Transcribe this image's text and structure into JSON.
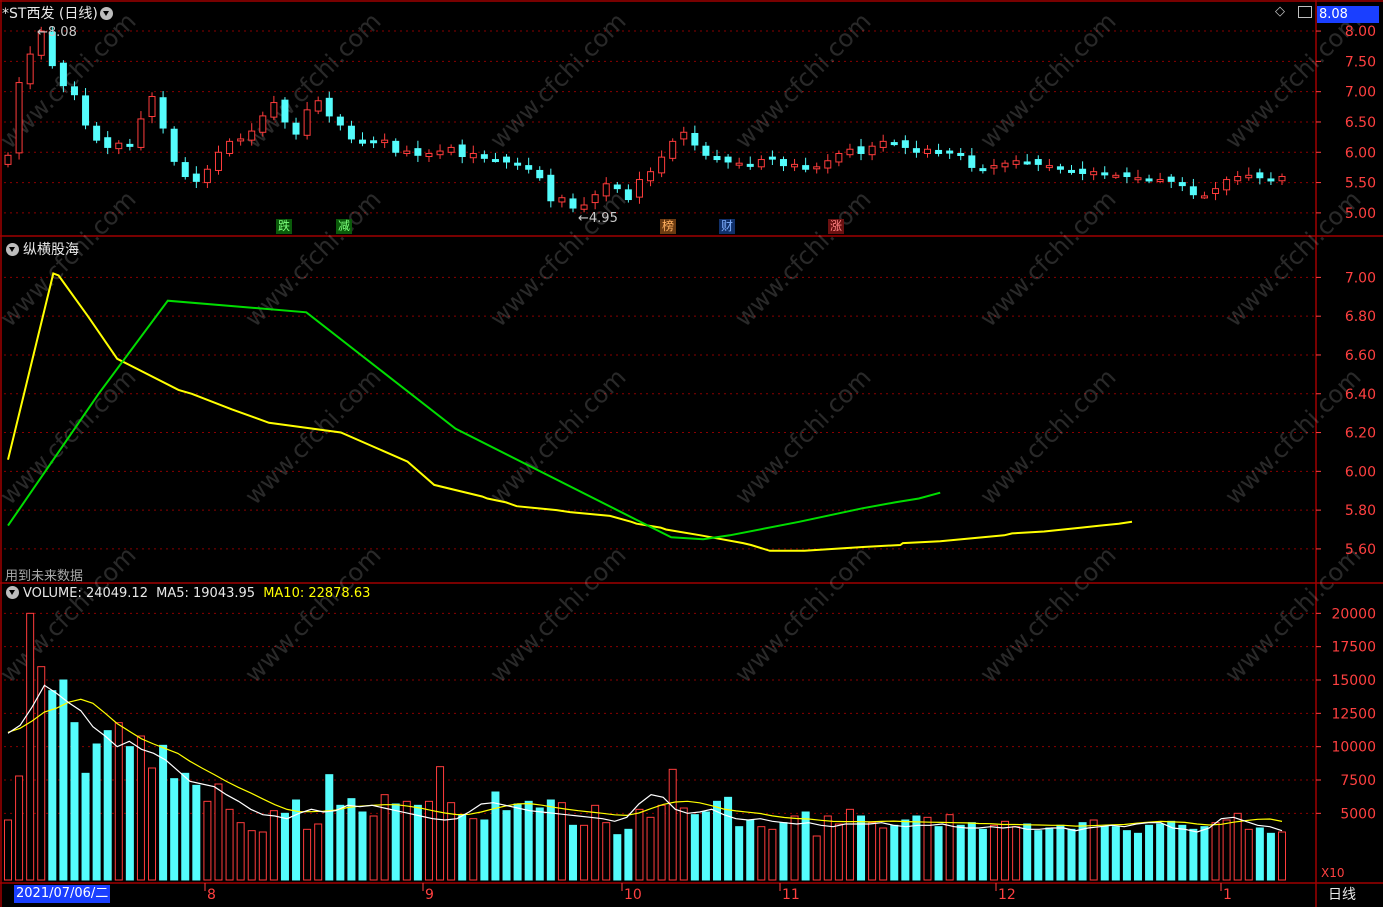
{
  "colors": {
    "up": "#ff3c3c",
    "down": "#54fcfc",
    "frame": "#a00000",
    "yellow": "#ffff00",
    "green": "#00dd00",
    "white": "#ffffff",
    "axis_text": "#ff4040"
  },
  "price_panel": {
    "title": "*ST西发 (日线)",
    "price_badge": "8.08",
    "high_label": "8.08",
    "low_label": "4.95",
    "y_ticks": [
      "8.00",
      "7.50",
      "7.00",
      "6.50",
      "6.00",
      "5.50",
      "5.00"
    ],
    "event_tags": [
      {
        "text": "跌",
        "color": "#00c000"
      },
      {
        "text": "减",
        "color": "#00c000"
      },
      {
        "text": "榜",
        "color": "#e08030"
      },
      {
        "text": "财",
        "color": "#3070ff"
      },
      {
        "text": "涨",
        "color": "#ff3030"
      }
    ]
  },
  "indicator_panel": {
    "title": "纵横股海",
    "note": "用到未来数据",
    "y_ticks": [
      "7.00",
      "6.80",
      "6.60",
      "6.40",
      "6.20",
      "6.00",
      "5.80",
      "5.60"
    ]
  },
  "volume_panel": {
    "title_volume": "VOLUME: 24049.12",
    "title_ma5": "MA5: 19043.95",
    "title_ma10": "MA10: 22878.63",
    "y_ticks": [
      "20000",
      "17500",
      "15000",
      "12500",
      "10000",
      "7500",
      "5000"
    ],
    "unit": "X10"
  },
  "x_axis": {
    "start_label": "2021/07/06/二",
    "month_labels": [
      "8",
      "9",
      "10",
      "11",
      "12",
      "1"
    ],
    "period_button": "日线"
  },
  "watermark": "www.cfchi.com",
  "chart_data": [
    {
      "type": "candlestick",
      "title": "*ST西发 (日线)",
      "ylim": [
        4.8,
        8.1
      ],
      "high": 8.08,
      "low": 4.95,
      "close_series": [
        5.95,
        7.15,
        7.62,
        8.0,
        7.43,
        7.1,
        6.95,
        6.45,
        6.2,
        6.08,
        6.15,
        6.1,
        6.55,
        6.92,
        6.4,
        5.85,
        5.6,
        5.52,
        5.72,
        6.0,
        6.18,
        6.22,
        6.35,
        6.6,
        6.82,
        6.5,
        6.3,
        6.7,
        6.85,
        6.6,
        6.45,
        6.22,
        6.15,
        6.18,
        6.2,
        6.0,
        6.02,
        5.95,
        5.98,
        6.02,
        6.08,
        5.93,
        5.98,
        5.9,
        5.88,
        5.84,
        5.8,
        5.72,
        5.58,
        5.2,
        5.25,
        5.08,
        5.13,
        5.3,
        5.48,
        5.4,
        5.22,
        5.55,
        5.68,
        5.92,
        6.18,
        6.33,
        6.12,
        5.95,
        5.88,
        5.84,
        5.82,
        5.78,
        5.88,
        5.9,
        5.78,
        5.8,
        5.72,
        5.76,
        5.86,
        5.98,
        6.05,
        5.98,
        6.1,
        6.18,
        6.15,
        6.08,
        6.0,
        6.05,
        5.98,
        6.0,
        5.96,
        5.75,
        5.7,
        5.78,
        5.82,
        5.86,
        5.84,
        5.8,
        5.78,
        5.72,
        5.68,
        5.65,
        5.68,
        5.63,
        5.62,
        5.6,
        5.58,
        5.56,
        5.55,
        5.52,
        5.45,
        5.3,
        5.28,
        5.4,
        5.55,
        5.6,
        5.62,
        5.58,
        5.55,
        5.6
      ]
    },
    {
      "type": "line",
      "title": "纵横股海",
      "ylim": [
        5.45,
        7.1
      ],
      "series": [
        {
          "name": "",
          "color": "#ffff00",
          "x": [
            0,
            17,
            19,
            30,
            41,
            64,
            69,
            84,
            98,
            125,
            150,
            160,
            178,
            180,
            187,
            191,
            206,
            211,
            226,
            234,
            236,
            245,
            247,
            260,
            276,
            279,
            286,
            289,
            294,
            298,
            299,
            310,
            321,
            335,
            336,
            350,
            374,
            377,
            389,
            403,
            410,
            417,
            422
          ],
          "values": [
            6.06,
            7.02,
            7.01,
            6.8,
            6.58,
            6.42,
            6.4,
            6.32,
            6.25,
            6.2,
            6.05,
            5.93,
            5.87,
            5.86,
            5.84,
            5.82,
            5.8,
            5.79,
            5.77,
            5.74,
            5.73,
            5.71,
            5.7,
            5.67,
            5.63,
            5.62,
            5.59,
            5.59,
            5.59,
            5.59,
            5.59,
            5.6,
            5.61,
            5.62,
            5.63,
            5.64,
            5.67,
            5.68,
            5.69,
            5.71,
            5.72,
            5.73,
            5.74
          ]
        },
        {
          "name": "",
          "color": "#00dd00",
          "x": [
            0,
            34,
            60,
            112,
            168,
            249,
            261,
            271,
            297,
            321,
            333,
            342,
            350
          ],
          "values": [
            5.72,
            6.4,
            6.88,
            6.82,
            6.22,
            5.66,
            5.65,
            5.67,
            5.74,
            5.81,
            5.84,
            5.86,
            5.89
          ]
        }
      ]
    },
    {
      "type": "bar",
      "title": "VOLUME",
      "ylim": [
        0,
        21000
      ],
      "values": [
        4500,
        7800,
        20000,
        16000,
        14200,
        15000,
        11800,
        8000,
        10200,
        11200,
        11800,
        10000,
        10800,
        8400,
        10100,
        7600,
        8000,
        7100,
        5900,
        7200,
        5300,
        4300,
        3700,
        3600,
        5200,
        5000,
        6000,
        3800,
        4200,
        7900,
        5600,
        6100,
        5100,
        4800,
        6400,
        5700,
        5900,
        5600,
        5900,
        8500,
        5800,
        4900,
        4600,
        4500,
        6600,
        5200,
        5700,
        5900,
        5400,
        6000,
        5800,
        4100,
        4100,
        5600,
        4300,
        3400,
        3800,
        5300,
        4700,
        5600,
        8300,
        5400,
        4900,
        5100,
        5900,
        6200,
        4000,
        4500,
        4000,
        3800,
        4300,
        4800,
        5100,
        3300,
        4800,
        4200,
        5300,
        4800,
        4300,
        3900,
        4100,
        4500,
        4800,
        4700,
        4000,
        4900,
        4100,
        4300,
        3800,
        4100,
        4400,
        4000,
        4200,
        3700,
        3900,
        4100,
        3800,
        4300,
        4500,
        4000,
        4000,
        3700,
        3500,
        4100,
        4200,
        4400,
        4100,
        3800,
        4000,
        4300,
        4500,
        5000,
        3800,
        3900,
        3500,
        3600
      ],
      "ma5_series": [
        11000,
        11600,
        13000,
        14600,
        14000,
        13300,
        12700,
        11500,
        10800,
        10000,
        10400,
        9800,
        9500,
        9000,
        8200,
        7400,
        7200,
        7000,
        6400,
        5900,
        5300,
        4900,
        4800,
        4600,
        5000,
        5300,
        5100,
        5200,
        5600,
        5500,
        5600,
        5400,
        5200,
        5000,
        4800,
        4600,
        4500,
        4600,
        5100,
        5700,
        5800,
        5600,
        5400,
        5200,
        5100,
        5000,
        4900,
        4800,
        4700,
        4600,
        4400,
        4700,
        5700,
        6400,
        6200,
        5300,
        5000,
        5100,
        5300,
        4900,
        4600,
        4500,
        4600,
        4400,
        4300,
        4200,
        4300,
        4100,
        4000,
        4200,
        4200,
        4200,
        4300,
        4100,
        4000,
        4100,
        4100,
        4200,
        4000,
        3900,
        3900,
        4000,
        3900,
        4000,
        3800,
        3800,
        3900,
        3900,
        3700,
        3900,
        4000,
        4100,
        4000,
        4200,
        4300,
        4300,
        3900,
        3800,
        3600,
        3900,
        4600,
        4700,
        4400,
        4100,
        4000,
        3700
      ]
    }
  ]
}
